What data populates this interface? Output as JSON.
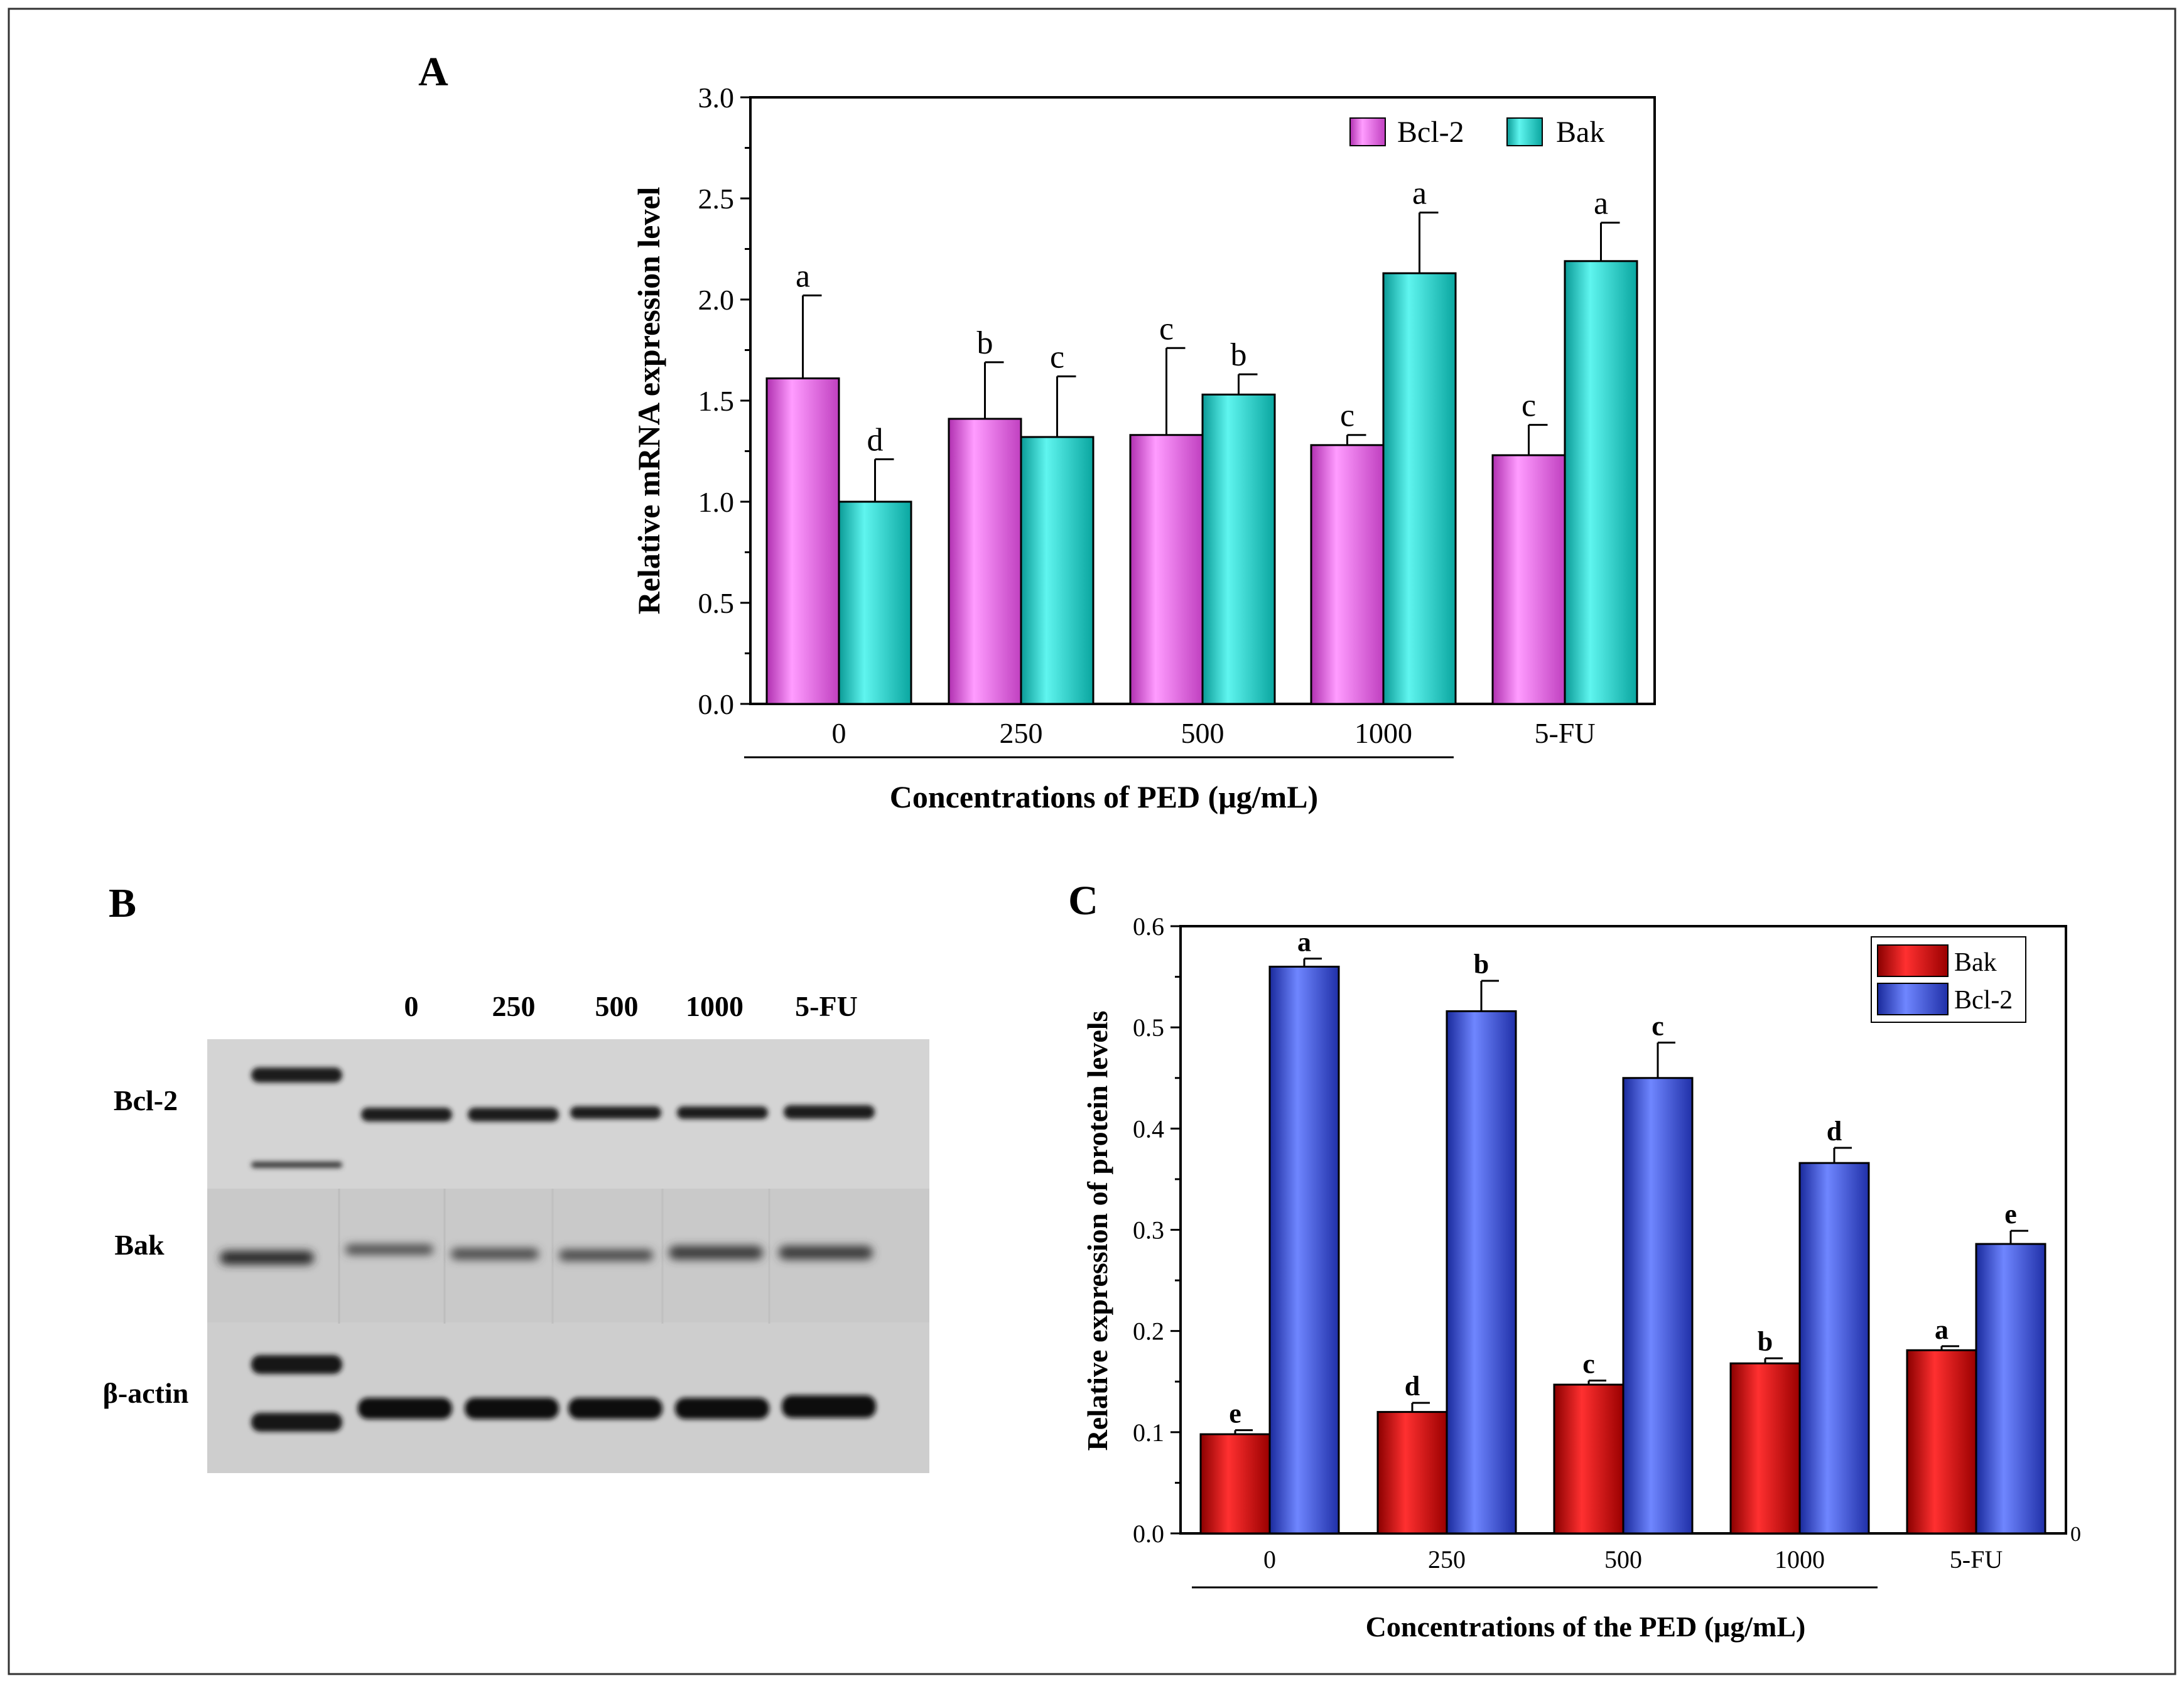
{
  "panels": {
    "a": {
      "label": "A"
    },
    "b": {
      "label": "B"
    },
    "c": {
      "label": "C"
    }
  },
  "colors": {
    "bcl2_mrna": "#f070f0",
    "bak_mrna": "#19d8d2",
    "bak_protein": "#e41818",
    "bcl2_protein": "#3c55e6"
  },
  "blot": {
    "lanes": [
      "0",
      "250",
      "500",
      "1000",
      "5-FU"
    ],
    "rows": [
      "Bcl-2",
      "Bak",
      "β-actin"
    ]
  },
  "chart_data": [
    {
      "type": "bar",
      "panel": "A",
      "categories": [
        "0",
        "250",
        "500",
        "1000",
        "5-FU"
      ],
      "ylim": [
        0,
        3.0
      ],
      "yticks": [
        "0.0",
        "0.5",
        "1.0",
        "1.5",
        "2.0",
        "2.5",
        "3.0"
      ],
      "xlabel": "Concentrations of PED (μg/mL)",
      "ylabel": "Relative mRNA expression level",
      "legend": [
        "Bcl-2",
        "Bak"
      ],
      "series": [
        {
          "name": "Bcl-2",
          "values": [
            1.61,
            1.41,
            1.33,
            1.28,
            1.23
          ],
          "errors": [
            0.41,
            0.28,
            0.43,
            0.05,
            0.15
          ],
          "letters": [
            "a",
            "b",
            "c",
            "c",
            "c"
          ]
        },
        {
          "name": "Bak",
          "values": [
            1.0,
            1.32,
            1.53,
            2.13,
            2.19
          ],
          "errors": [
            0.21,
            0.3,
            0.1,
            0.3,
            0.19
          ],
          "letters": [
            "d",
            "c",
            "b",
            "a",
            "a"
          ]
        }
      ]
    },
    {
      "type": "bar",
      "panel": "C",
      "categories": [
        "0",
        "250",
        "500",
        "1000",
        "5-FU"
      ],
      "ylim": [
        0,
        0.6
      ],
      "yticks": [
        "0.0",
        "0.1",
        "0.2",
        "0.3",
        "0.4",
        "0.5",
        "0.6"
      ],
      "right_axis_label": "0",
      "xlabel": "Concentrations of the PED (μg/mL)",
      "ylabel": "Relative expression of protein levels",
      "legend": [
        "Bak",
        "Bcl-2"
      ],
      "series": [
        {
          "name": "Bak",
          "values": [
            0.098,
            0.12,
            0.147,
            0.168,
            0.181
          ],
          "errors": [
            0.004,
            0.009,
            0.004,
            0.005,
            0.004
          ],
          "letters": [
            "e",
            "d",
            "c",
            "b",
            "a"
          ]
        },
        {
          "name": "Bcl-2",
          "values": [
            0.56,
            0.516,
            0.45,
            0.366,
            0.286
          ],
          "errors": [
            0.008,
            0.03,
            0.035,
            0.015,
            0.013
          ],
          "letters": [
            "a",
            "b",
            "c",
            "d",
            "e"
          ]
        }
      ]
    }
  ]
}
